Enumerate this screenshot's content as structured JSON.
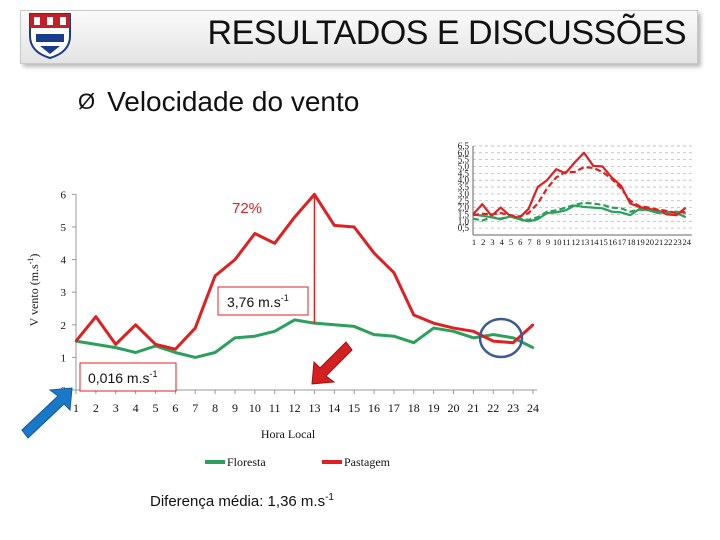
{
  "header": {
    "title": "RESULTADOS E DISCUSSÕES"
  },
  "section": {
    "bullet": "Ø",
    "title": "Velocidade do vento"
  },
  "annotations": {
    "percent": "72%",
    "diff_text": "3,76 m.s",
    "min_text": "0,016 m.s",
    "exp": "-1"
  },
  "footer": {
    "text": "Diferença média: 1,36 m.s",
    "exp": "-1"
  },
  "colors": {
    "floresta": "#2aa05a",
    "pastagem": "#e02020",
    "accent_arrow": "#1a78c8",
    "red_arrow": "#d42020",
    "circle": "#3b5a9a"
  },
  "icons": {
    "logo": "university-crest-icon",
    "left_arrow": "blue-arrow-icon",
    "right_arrow": "red-arrow-icon"
  },
  "chart_data": [
    {
      "type": "line",
      "title": "",
      "xlabel": "Hora Local",
      "ylabel": "V vento (m.s-1)",
      "ylabel_main": "V vento (m.s",
      "ylabel_exp": "-1",
      "ylabel_close": ")",
      "categories": [
        1,
        2,
        3,
        4,
        5,
        6,
        7,
        8,
        9,
        10,
        11,
        12,
        13,
        14,
        15,
        16,
        17,
        18,
        19,
        20,
        21,
        22,
        23,
        24
      ],
      "yticks": [
        0,
        1,
        2,
        3,
        4,
        5,
        6
      ],
      "ylim": [
        0,
        6
      ],
      "legend": "bottom",
      "series": [
        {
          "name": "Floresta",
          "values": [
            1.5,
            1.4,
            1.3,
            1.15,
            1.35,
            1.15,
            1.0,
            1.15,
            1.6,
            1.65,
            1.8,
            2.15,
            2.05,
            2.0,
            1.95,
            1.7,
            1.65,
            1.45,
            1.9,
            1.8,
            1.6,
            1.7,
            1.6,
            1.3
          ]
        },
        {
          "name": "Pastagem",
          "values": [
            1.5,
            2.25,
            1.4,
            2.0,
            1.4,
            1.25,
            1.9,
            3.5,
            4.0,
            4.8,
            4.5,
            5.3,
            6.0,
            5.05,
            5.0,
            4.2,
            3.6,
            2.3,
            2.05,
            1.9,
            1.8,
            1.5,
            1.45,
            2.0
          ]
        }
      ]
    },
    {
      "type": "line",
      "title": "",
      "categories": [
        1,
        2,
        3,
        4,
        5,
        6,
        7,
        8,
        9,
        10,
        11,
        12,
        13,
        14,
        15,
        16,
        17,
        18,
        19,
        20,
        21,
        22,
        23,
        24
      ],
      "ytick_labels": [
        "0,5",
        "1,0",
        "1,5",
        "2,0",
        "2,5",
        "3,0",
        "3,5",
        "4,0",
        "4,5",
        "5,0",
        "5,5",
        "6,0",
        "6,5"
      ],
      "ylim": [
        0.5,
        6.5
      ],
      "grid": true,
      "series": [
        {
          "name": "Floresta",
          "style": "solid",
          "values": [
            1.5,
            1.4,
            1.3,
            1.15,
            1.35,
            1.15,
            1.0,
            1.15,
            1.6,
            1.65,
            1.8,
            2.15,
            2.05,
            2.0,
            1.95,
            1.7,
            1.65,
            1.45,
            1.9,
            1.8,
            1.6,
            1.7,
            1.6,
            1.3
          ]
        },
        {
          "name": "Pastagem",
          "style": "solid",
          "values": [
            1.5,
            2.25,
            1.4,
            2.0,
            1.4,
            1.25,
            1.9,
            3.5,
            4.0,
            4.8,
            4.5,
            5.3,
            6.0,
            5.05,
            5.0,
            4.2,
            3.6,
            2.3,
            2.05,
            1.9,
            1.8,
            1.5,
            1.45,
            2.0
          ]
        },
        {
          "name": "Floresta",
          "style": "dashed",
          "values": [
            1.2,
            1.05,
            1.3,
            1.2,
            1.35,
            1.2,
            1.1,
            1.3,
            1.7,
            1.8,
            2.0,
            2.2,
            2.35,
            2.3,
            2.2,
            2.0,
            1.95,
            1.7,
            1.85,
            1.8,
            1.7,
            1.65,
            1.7,
            1.6
          ]
        },
        {
          "name": "Pastagem",
          "style": "dashed",
          "values": [
            1.45,
            1.55,
            1.5,
            1.6,
            1.45,
            1.35,
            1.6,
            2.3,
            3.4,
            4.2,
            4.6,
            4.6,
            4.95,
            4.9,
            4.6,
            4.1,
            3.4,
            2.5,
            2.1,
            2.0,
            1.85,
            1.75,
            1.6,
            1.7
          ]
        }
      ]
    }
  ]
}
